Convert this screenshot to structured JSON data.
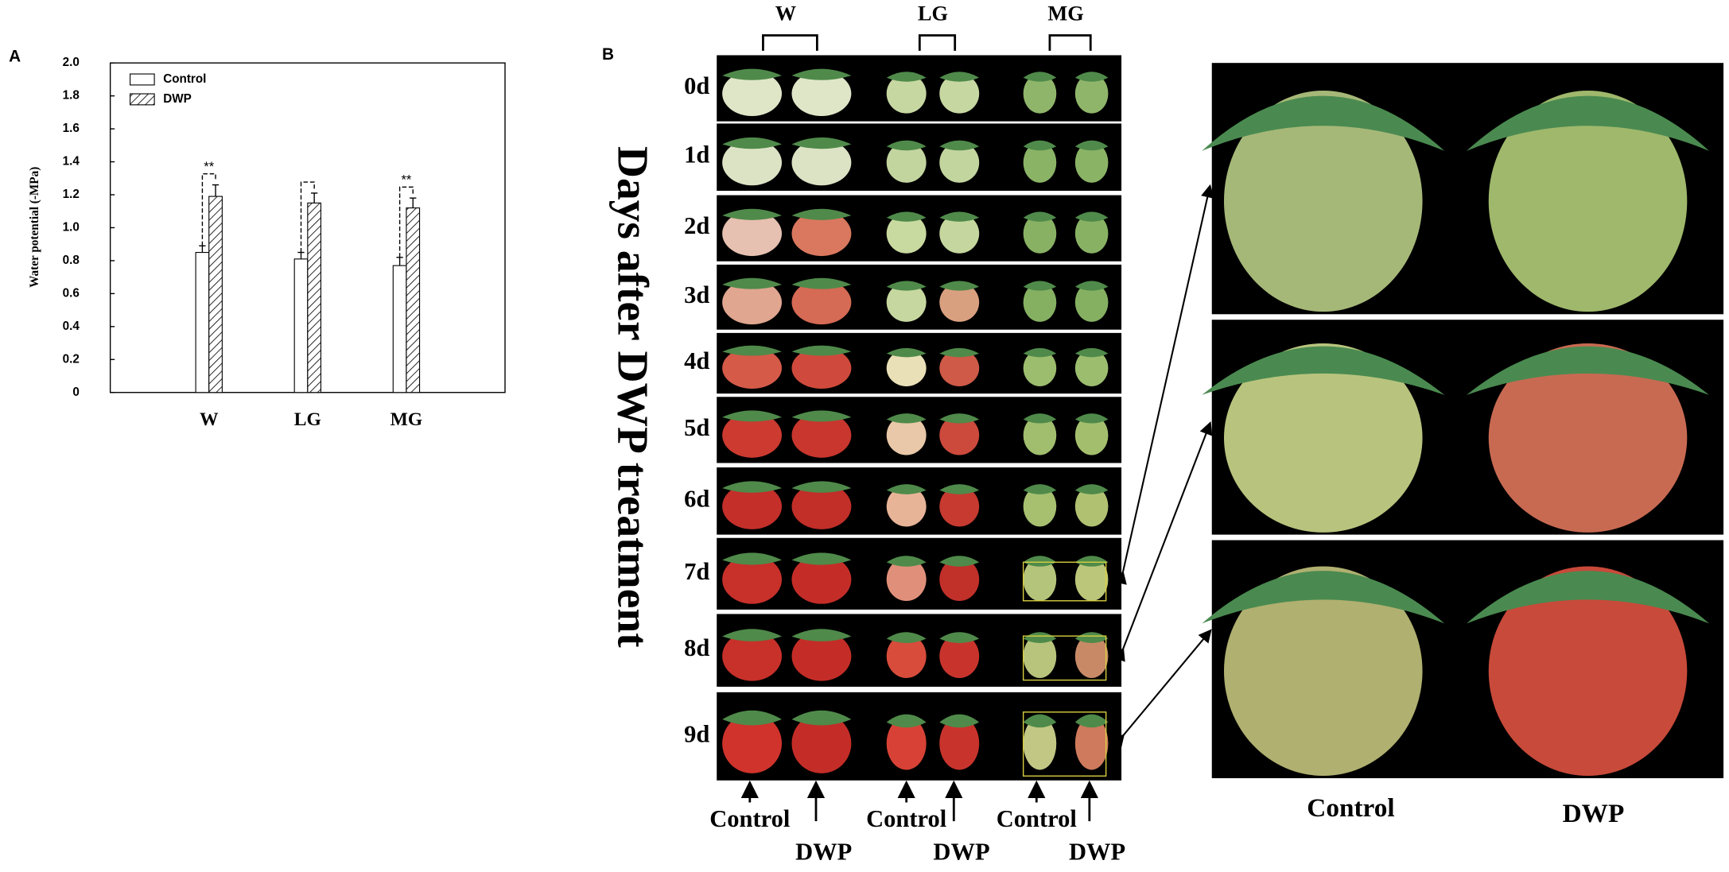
{
  "chart_data": {
    "type": "bar",
    "panel_label": "A",
    "ylabel": "Water potential (-MPa)",
    "categories": [
      "W",
      "LG",
      "MG"
    ],
    "series": [
      {
        "name": "Control",
        "color": "#ffffff",
        "pattern": "solid",
        "values": [
          0.85,
          0.81,
          0.77
        ],
        "errors": [
          0.04,
          0.04,
          0.05
        ]
      },
      {
        "name": "DWP",
        "color": "#ffffff",
        "pattern": "hatch",
        "values": [
          1.19,
          1.15,
          1.12
        ],
        "errors": [
          0.07,
          0.06,
          0.06
        ]
      }
    ],
    "ylim": [
      0,
      2
    ],
    "yticks": [
      0,
      0.2,
      0.4,
      0.6,
      0.8,
      {
        "value": 1,
        "label": "1.0"
      },
      1.2,
      1.4,
      1.6,
      1.8,
      {
        "value": 2,
        "label": "2.0"
      }
    ],
    "legend": "upper left",
    "annotations": [
      {
        "text": "**",
        "category": "W"
      },
      {
        "text": "**",
        "category": "MG"
      }
    ]
  },
  "panel_b": {
    "label": "B",
    "columns": [
      "W",
      "LG",
      "MG"
    ],
    "rows": [
      "0d",
      "1d",
      "2d",
      "3d",
      "4d",
      "5d",
      "6d",
      "7d",
      "8d",
      "9d"
    ],
    "ylabel": "Days after DWP treatment",
    "bottom_labels": [
      [
        "Control",
        "DWP"
      ],
      [
        "Control",
        "DWP"
      ],
      [
        "Control",
        "DWP"
      ]
    ],
    "zoom_labels": [
      "Control",
      "DWP"
    ]
  }
}
